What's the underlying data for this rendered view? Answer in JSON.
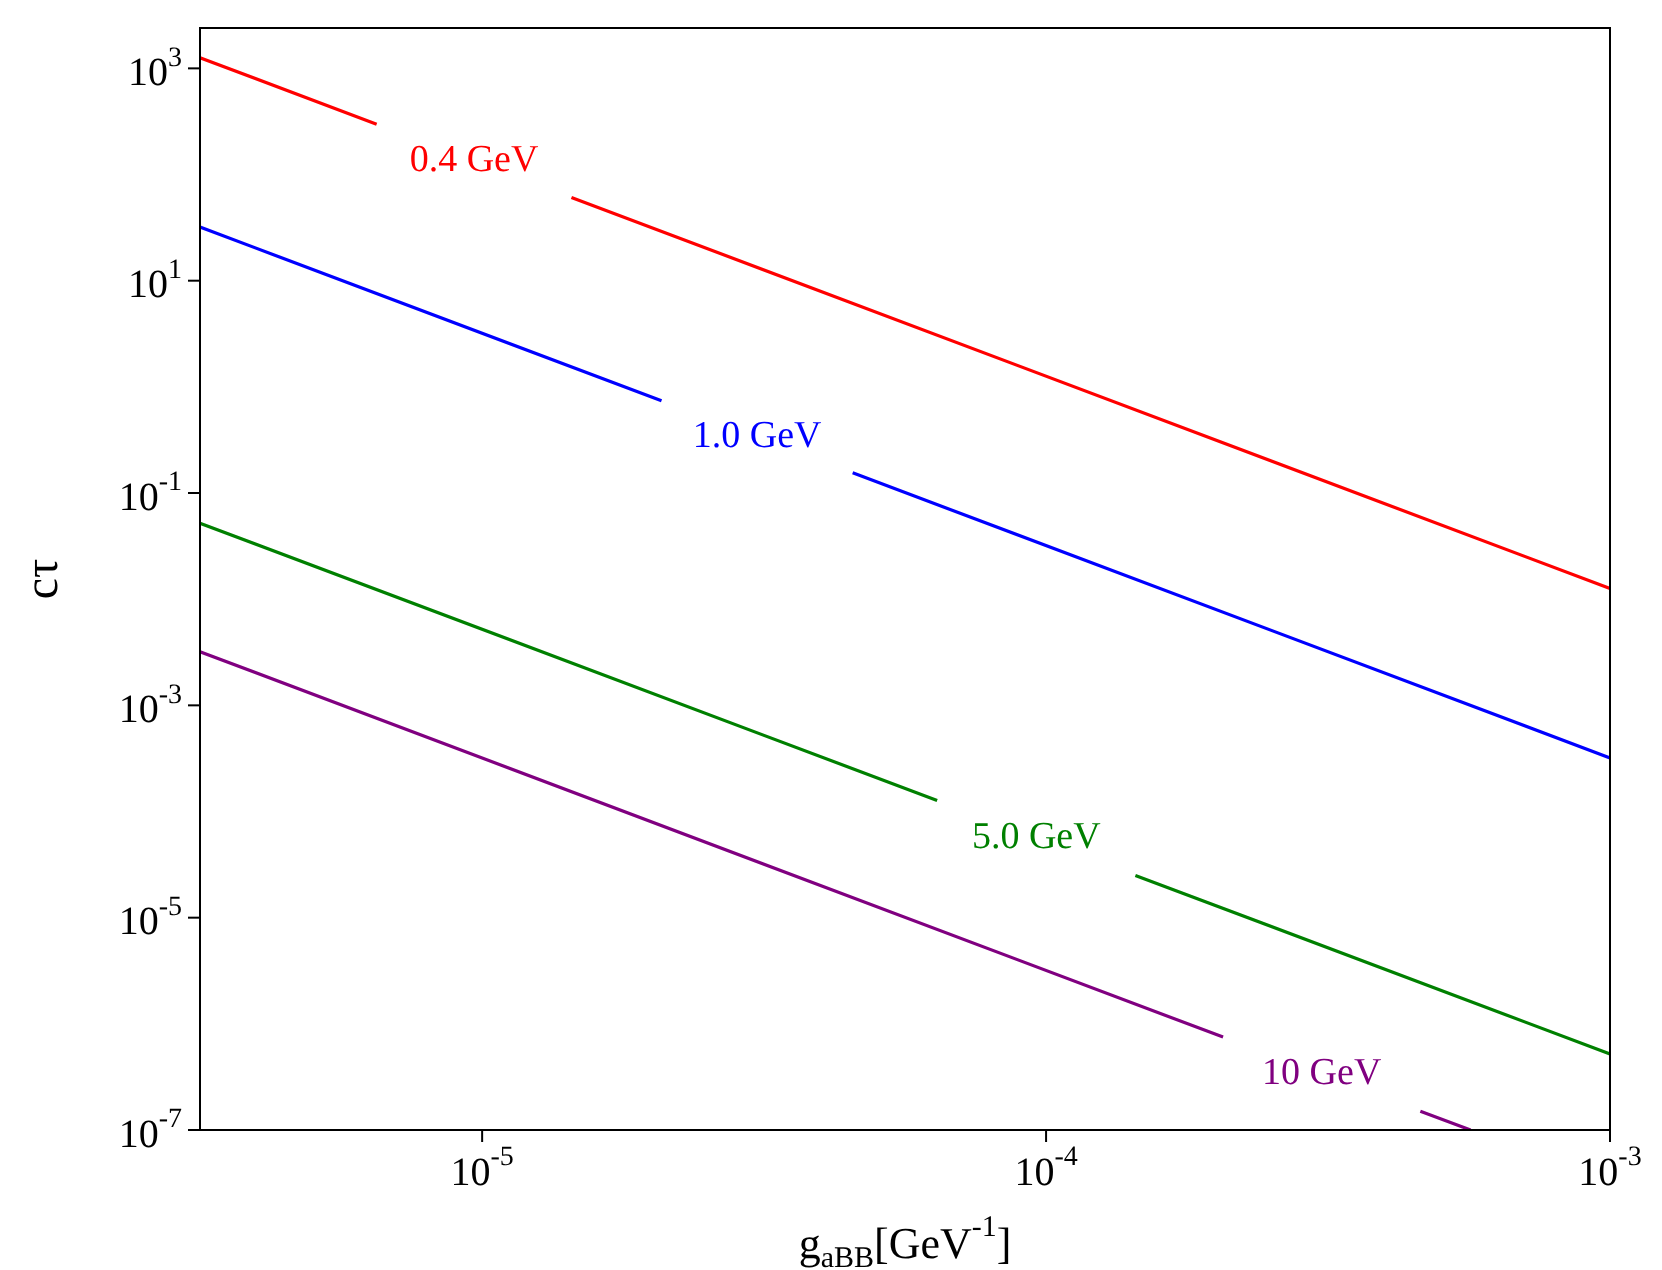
{
  "chart_data": {
    "type": "line",
    "xlabel": "g$_{aBB}$[GeV$^{-1}$]",
    "ylabel": "cτ",
    "log": "xy",
    "marker": "none",
    "line_style": "solid",
    "xlim": [
      3.16e-06,
      0.001
    ],
    "ylim": [
      1e-07,
      2400
    ],
    "xticks": [
      {
        "value": 1e-05,
        "label": "10$^{-5}$"
      },
      {
        "value": 0.0001,
        "label": "10$^{-4}$"
      },
      {
        "value": 0.001,
        "label": "10$^{-3}$"
      }
    ],
    "yticks": [
      {
        "value": 1e-07,
        "label": "10$^{-7}$"
      },
      {
        "value": 1e-05,
        "label": "10$^{-5}$"
      },
      {
        "value": 0.001,
        "label": "10$^{-3}$"
      },
      {
        "value": 0.1,
        "label": "10$^{-1}$"
      },
      {
        "value": 10,
        "label": "10$^{1}$"
      },
      {
        "value": 1000,
        "label": "10$^{3}$"
      }
    ],
    "series": [
      {
        "name": "0.4 GeV",
        "color": "#ff0000",
        "x": [
          3.16e-06,
          6.5e-06,
          null,
          1.44e-05,
          0.001
        ],
        "values": [
          1260,
          298,
          null,
          60.8,
          0.0126
        ]
      },
      {
        "name": "1.0 GeV",
        "color": "#0000ff",
        "x": [
          3.16e-06,
          2.08e-05,
          null,
          4.54e-05,
          0.001
        ],
        "values": [
          32,
          0.74,
          null,
          0.155,
          0.00032
        ]
      },
      {
        "name": "5.0 GeV",
        "color": "#008000",
        "x": [
          3.16e-06,
          6.41e-05,
          null,
          0.000144,
          0.001
        ],
        "values": [
          0.052,
          0.000127,
          null,
          2.5e-05,
          5.2e-07
        ]
      },
      {
        "name": "10 GeV",
        "color": "#800080",
        "x": [
          3.16e-06,
          0.000206,
          null,
          0.000461,
          0.000566
        ],
        "values": [
          0.0032,
          7.5e-07,
          null,
          1.5e-07,
          1e-07
        ]
      }
    ]
  }
}
